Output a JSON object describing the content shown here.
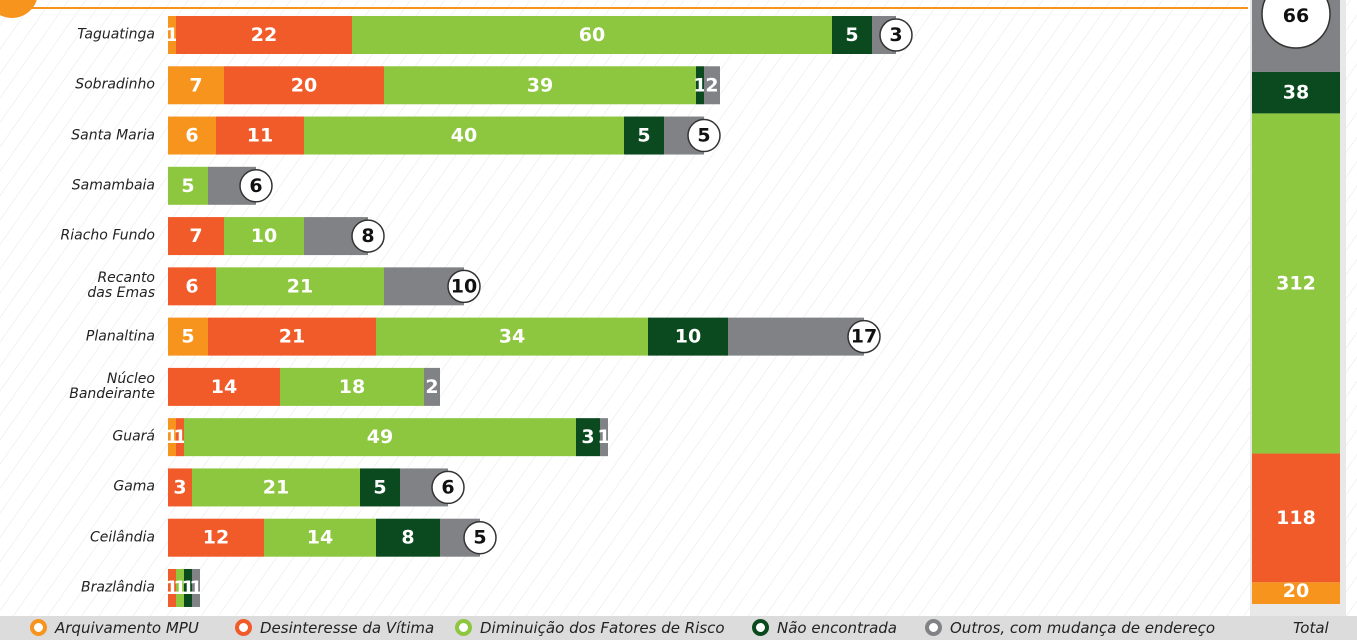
{
  "chart_data": {
    "type": "bar",
    "orientation": "horizontal",
    "stacked": true,
    "categories": [
      "Taguatinga",
      "Sobradinho",
      "Santa Maria",
      "Samambaia",
      "Riacho Fundo",
      "Recanto\ndas Emas",
      "Planaltina",
      "Núcleo\nBandeirante",
      "Guará",
      "Gama",
      "Ceilândia",
      "Brazlândia"
    ],
    "series": [
      {
        "name": "Arquivamento MPU",
        "color": "#f7941d",
        "values": [
          1,
          7,
          6,
          null,
          null,
          null,
          5,
          null,
          1,
          null,
          null,
          null
        ],
        "total": 20
      },
      {
        "name": "Desinteresse da Vítima",
        "color": "#f15a29",
        "values": [
          22,
          20,
          11,
          null,
          7,
          6,
          21,
          14,
          1,
          3,
          12,
          1
        ],
        "total": 118
      },
      {
        "name": "Diminuição dos Fatores de Risco",
        "color": "#8dc63f",
        "values": [
          60,
          39,
          40,
          5,
          10,
          21,
          34,
          18,
          49,
          21,
          14,
          1
        ],
        "total": 312
      },
      {
        "name": "Não encontrada",
        "color": "#0b4a1f",
        "values": [
          5,
          1,
          5,
          null,
          null,
          null,
          10,
          null,
          3,
          5,
          8,
          1
        ],
        "total": 38
      },
      {
        "name": "Outros, com mudança de endereço",
        "color": "#808285",
        "values": [
          3,
          2,
          5,
          6,
          8,
          10,
          17,
          2,
          1,
          6,
          5,
          1
        ],
        "total": 66
      }
    ],
    "totals_title": "Total"
  }
}
